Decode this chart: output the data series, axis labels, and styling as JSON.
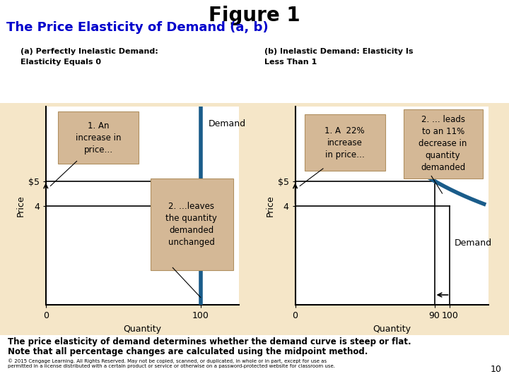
{
  "title": "Figure 1",
  "subtitle": "The Price Elasticity of Demand (a, b)",
  "subtitle_color": "#0000cc",
  "bg_outer": "#e8a0b4",
  "bg_white": "#ffffff",
  "bg_tan": "#f5e6c8",
  "bg_chart": "#ffffff",
  "box_fill": "#d4b896",
  "box_edge": "#b09060",
  "panel_a_title_line1": "(a) Perfectly Inelastic Demand:",
  "panel_a_title_line2": "Elasticity Equals 0",
  "panel_b_title_line1": "(b) Inelastic Demand: Elasticity Is",
  "panel_b_title_line2": "Less Than 1",
  "price_label": "Price",
  "quantity_label": "Quantity",
  "demand_label_a": "Demand",
  "demand_label_b": "Demand",
  "note_a1_text": "1. An\nincrease in\nprice…",
  "note_a2_text": "2. …leaves\nthe quantity\ndemanded\nunchanged",
  "note_b1_text": "1. A  22%\nincrease\nin price…",
  "note_b2_text": "2. … leads\nto an 11%\ndecrease in\nquantity\ndemanded",
  "footer1": "The price elasticity of demand determines whether the demand curve is steep or flat.",
  "footer2": "Note that all percentage changes are calculated using the midpoint method.",
  "copyright": "© 2015 Cengage Learning. All Rights Reserved. May not be copied, scanned, or duplicated, in whole or in part, except for use as\npermitted in a license distributed with a certain product or service or otherwise on a password-protected website for classroom use.",
  "page_num": "10",
  "line_color": "#1a5c8a",
  "curve_color": "#1a5c8a"
}
